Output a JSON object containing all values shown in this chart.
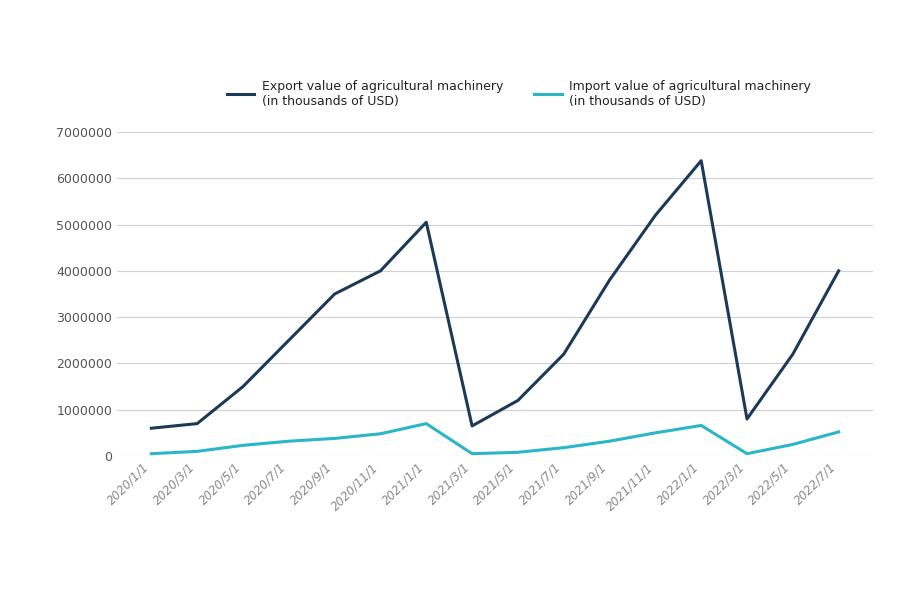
{
  "x_labels": [
    "2020/1/1",
    "2020/3/1",
    "2020/5/1",
    "2020/7/1",
    "2020/9/1",
    "2020/11/1",
    "2021/1/1",
    "2021/3/1",
    "2021/5/1",
    "2021/7/1",
    "2021/9/1",
    "2021/11/1",
    "2022/1/1",
    "2022/3/1",
    "2022/5/1",
    "2022/7/1"
  ],
  "export_values": [
    600000,
    700000,
    1500000,
    2500000,
    3500000,
    4000000,
    5050000,
    650000,
    1200000,
    2200000,
    3800000,
    5200000,
    6380000,
    800000,
    2200000,
    4000000
  ],
  "import_values": [
    50000,
    100000,
    230000,
    320000,
    380000,
    480000,
    700000,
    50000,
    80000,
    180000,
    320000,
    500000,
    660000,
    50000,
    250000,
    520000
  ],
  "export_color": "#1c3a57",
  "import_color": "#2bb5c8",
  "export_label": "Export value of agricultural machinery\n(in thousands of USD)",
  "import_label": "Import value of agricultural machinery\n(in thousands of USD)",
  "ylim": [
    0,
    7000000
  ],
  "yticks": [
    0,
    1000000,
    2000000,
    3000000,
    4000000,
    5000000,
    6000000,
    7000000
  ],
  "ytick_labels": [
    "0",
    "1000000",
    "2000000",
    "3000000",
    "4000000",
    "5000000",
    "6000000",
    "7000000"
  ],
  "background_color": "#ffffff",
  "grid_color": "#d0d0d0",
  "line_width": 2.2
}
